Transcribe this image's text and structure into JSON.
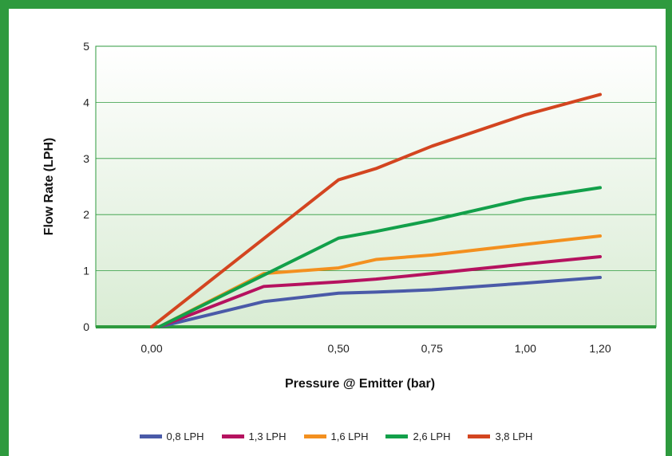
{
  "chart_data": {
    "type": "line",
    "xlabel": "Pressure @ Emitter (bar)",
    "ylabel": "Flow Rate (LPH)",
    "xlim": [
      0.0,
      1.2
    ],
    "ylim": [
      0,
      5
    ],
    "x_tick_labels": [
      "0,00",
      "0,50",
      "0,75",
      "1,00",
      "1,20"
    ],
    "y_tick_labels": [
      "0",
      "1",
      "2",
      "3",
      "4",
      "5"
    ],
    "grid": "horizontal",
    "legend_position": "bottom",
    "series": [
      {
        "name": "0,8 LPH",
        "color": "#4a5aa8",
        "points": [
          [
            0.02,
            0
          ],
          [
            0.3,
            0.45
          ],
          [
            0.5,
            0.6
          ],
          [
            0.6,
            0.62
          ],
          [
            0.75,
            0.66
          ],
          [
            1.0,
            0.78
          ],
          [
            1.2,
            0.88
          ]
        ]
      },
      {
        "name": "1,3 LPH",
        "color": "#b5125f",
        "points": [
          [
            0.02,
            0
          ],
          [
            0.3,
            0.72
          ],
          [
            0.5,
            0.8
          ],
          [
            0.6,
            0.85
          ],
          [
            0.75,
            0.95
          ],
          [
            1.0,
            1.12
          ],
          [
            1.2,
            1.25
          ]
        ]
      },
      {
        "name": "1,6 LPH",
        "color": "#f3901f",
        "points": [
          [
            0.02,
            0
          ],
          [
            0.3,
            0.95
          ],
          [
            0.5,
            1.05
          ],
          [
            0.6,
            1.2
          ],
          [
            0.75,
            1.28
          ],
          [
            1.0,
            1.47
          ],
          [
            1.2,
            1.62
          ]
        ]
      },
      {
        "name": "2,6 LPH",
        "color": "#12a04a",
        "points": [
          [
            0.02,
            0
          ],
          [
            0.5,
            1.58
          ],
          [
            0.6,
            1.7
          ],
          [
            0.75,
            1.9
          ],
          [
            1.0,
            2.28
          ],
          [
            1.2,
            2.48
          ]
        ]
      },
      {
        "name": "3,8 LPH",
        "color": "#d34520",
        "points": [
          [
            0.0,
            0
          ],
          [
            0.5,
            2.62
          ],
          [
            0.6,
            2.82
          ],
          [
            0.75,
            3.22
          ],
          [
            1.0,
            3.78
          ],
          [
            1.2,
            4.14
          ]
        ]
      }
    ]
  }
}
